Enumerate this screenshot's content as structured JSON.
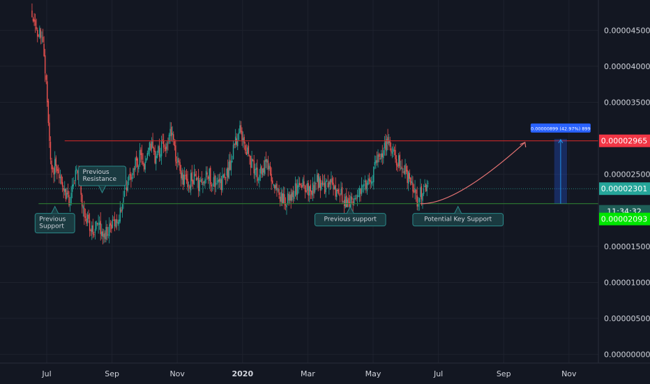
{
  "chart_data": {
    "type": "candlestick",
    "y_ticks": [
      "0.00004500",
      "0.00004000",
      "0.00003500",
      "0.00002500",
      "0.00001500",
      "0.00001000",
      "0.00000500",
      "0.00000000"
    ],
    "y_tick_values": [
      4.5e-05,
      4e-05,
      3.5e-05,
      2.5e-05,
      1.5e-05,
      1e-05,
      5e-06,
      0
    ],
    "ylim": [
      -1.2e-06,
      4.92e-05
    ],
    "x_ticks": [
      {
        "label": "Jul",
        "month": 0,
        "bold": false
      },
      {
        "label": "Sep",
        "month": 2,
        "bold": false
      },
      {
        "label": "Nov",
        "month": 4,
        "bold": false
      },
      {
        "label": "2020",
        "month": 6,
        "bold": true
      },
      {
        "label": "Mar",
        "month": 8,
        "bold": false
      },
      {
        "label": "May",
        "month": 10,
        "bold": false
      },
      {
        "label": "Jul",
        "month": 12,
        "bold": false
      },
      {
        "label": "Sep",
        "month": 14,
        "bold": false
      },
      {
        "label": "Nov",
        "month": 16,
        "bold": false
      }
    ],
    "price_path": [
      [
        -0.45,
        4.75e-05
      ],
      [
        -0.35,
        4.5e-05
      ],
      [
        -0.2,
        4.45e-05
      ],
      [
        -0.1,
        4.2e-05
      ],
      [
        0.0,
        3.75e-05
      ],
      [
        0.05,
        3.2e-05
      ],
      [
        0.1,
        2.8e-05
      ],
      [
        0.15,
        2.55e-05
      ],
      [
        0.25,
        2.6e-05
      ],
      [
        0.4,
        2.4e-05
      ],
      [
        0.5,
        2.25e-05
      ],
      [
        0.6,
        2.15e-05
      ],
      [
        0.75,
        2.2e-05
      ],
      [
        0.9,
        2.55e-05
      ],
      [
        1.0,
        2.35e-05
      ],
      [
        1.1,
        2.1e-05
      ],
      [
        1.25,
        1.85e-05
      ],
      [
        1.45,
        1.75e-05
      ],
      [
        1.6,
        1.78e-05
      ],
      [
        1.8,
        1.7e-05
      ],
      [
        2.0,
        1.78e-05
      ],
      [
        2.2,
        1.9e-05
      ],
      [
        2.4,
        2.2e-05
      ],
      [
        2.55,
        2.5e-05
      ],
      [
        2.7,
        2.6e-05
      ],
      [
        2.85,
        2.75e-05
      ],
      [
        3.0,
        2.65e-05
      ],
      [
        3.2,
        2.9e-05
      ],
      [
        3.35,
        2.7e-05
      ],
      [
        3.5,
        2.9e-05
      ],
      [
        3.7,
        2.85e-05
      ],
      [
        3.8,
        3.1e-05
      ],
      [
        3.95,
        2.75e-05
      ],
      [
        4.1,
        2.5e-05
      ],
      [
        4.3,
        2.35e-05
      ],
      [
        4.5,
        2.45e-05
      ],
      [
        4.7,
        2.3e-05
      ],
      [
        4.9,
        2.55e-05
      ],
      [
        5.1,
        2.4e-05
      ],
      [
        5.3,
        2.35e-05
      ],
      [
        5.5,
        2.45e-05
      ],
      [
        5.7,
        2.8e-05
      ],
      [
        5.9,
        3.1e-05
      ],
      [
        6.1,
        2.9e-05
      ],
      [
        6.3,
        2.6e-05
      ],
      [
        6.5,
        2.45e-05
      ],
      [
        6.75,
        2.65e-05
      ],
      [
        6.95,
        2.3e-05
      ],
      [
        7.2,
        2.2e-05
      ],
      [
        7.4,
        2.15e-05
      ],
      [
        7.6,
        2.3e-05
      ],
      [
        7.85,
        2.4e-05
      ],
      [
        8.1,
        2.25e-05
      ],
      [
        8.3,
        2.4e-05
      ],
      [
        8.5,
        2.3e-05
      ],
      [
        8.75,
        2.35e-05
      ],
      [
        9.0,
        2.2e-05
      ],
      [
        9.25,
        2.05e-05
      ],
      [
        9.45,
        2.2e-05
      ],
      [
        9.7,
        2.3e-05
      ],
      [
        9.95,
        2.45e-05
      ],
      [
        10.15,
        2.7e-05
      ],
      [
        10.35,
        2.9e-05
      ],
      [
        10.55,
        2.85e-05
      ],
      [
        10.75,
        2.7e-05
      ],
      [
        10.95,
        2.6e-05
      ],
      [
        11.15,
        2.35e-05
      ],
      [
        11.35,
        2.15e-05
      ],
      [
        11.5,
        2.25e-05
      ],
      [
        11.7,
        2.3e-05
      ]
    ],
    "levels": [
      {
        "name": "resistance",
        "value": 2.965e-05,
        "color": "#c62828"
      },
      {
        "name": "support",
        "value": 2.093e-05,
        "color": "#2e7d32"
      },
      {
        "name": "current",
        "value": 2.301e-05,
        "color": "#26a69a"
      }
    ],
    "price_badges": [
      {
        "text": "0.00002965",
        "value": 2.965e-05,
        "bg": "#f23645",
        "fg": "#ffffff"
      },
      {
        "text": "0.00002301",
        "value": 2.301e-05,
        "bg": "#26a69a",
        "fg": "#ffffff"
      },
      {
        "text": "11:34:32",
        "value": 2.093e-05,
        "offset": 11,
        "bg": "#1e5e57",
        "fg": "#ffffff"
      },
      {
        "text": "0.00002093",
        "value": 2.093e-05,
        "offset": 22,
        "bg": "#00e600",
        "fg": "#000000"
      }
    ],
    "projection_box": {
      "label": "0.00000899 (42.97%) 899",
      "month_start": 15.55,
      "month_end": 15.94,
      "top": 2.992e-05,
      "bottom": 2.093e-05
    },
    "projection_arrow_start": {
      "month": 11.45,
      "value": 2.093e-05
    },
    "annotations": [
      {
        "text": [
          "Previous",
          "Support"
        ],
        "month": 0.25,
        "value": 2.03e-05,
        "pointer": "up"
      },
      {
        "text": [
          "Previous",
          "Resistance"
        ],
        "month": 1.7,
        "value": 2.245e-05,
        "pointer": "down"
      },
      {
        "text": [
          "Previous support"
        ],
        "month": 9.3,
        "value": 2.03e-05,
        "pointer": "up"
      },
      {
        "text": [
          "Potential Key Support"
        ],
        "month": 12.6,
        "value": 2.03e-05,
        "pointer": "up"
      }
    ]
  }
}
